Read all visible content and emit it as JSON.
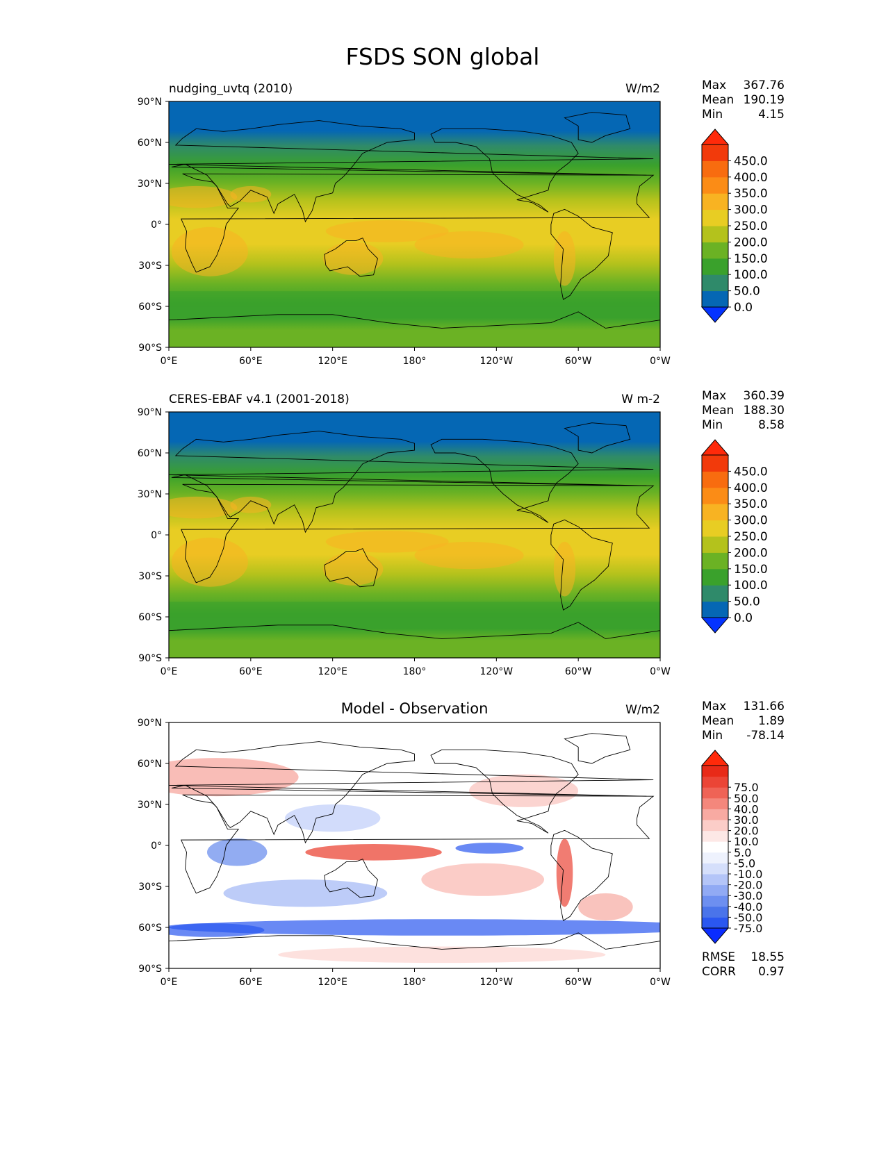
{
  "figure_title": "FSDS SON global",
  "axes": {
    "lat_labels": [
      "90°N",
      "60°N",
      "30°N",
      "0°",
      "30°S",
      "60°S",
      "90°S"
    ],
    "lon_labels": [
      "0°E",
      "60°E",
      "120°E",
      "180°",
      "120°W",
      "60°W",
      "0°W"
    ]
  },
  "panels": [
    {
      "left_title": "nudging_uvtq (2010)",
      "center_title": "",
      "units": "W/m2",
      "stats": {
        "max_label": "Max",
        "max": "367.76",
        "mean_label": "Mean",
        "mean": "190.19",
        "min_label": "Min",
        "min": "4.15"
      },
      "colorbar": {
        "labels": [
          "450.0",
          "400.0",
          "350.0",
          "300.0",
          "250.0",
          "200.0",
          "150.0",
          "100.0",
          "50.0",
          "0.0"
        ],
        "colors": [
          "#0433ff",
          "#0567b4",
          "#2f8a6a",
          "#3aa12c",
          "#6bb224",
          "#b4c21c",
          "#e8cd23",
          "#f8b322",
          "#fb8c16",
          "#f86c0f",
          "#f23a0b",
          "#ff2a0a"
        ]
      }
    },
    {
      "left_title": "CERES-EBAF v4.1 (2001-2018)",
      "center_title": "",
      "units": "W m-2",
      "stats": {
        "max_label": "Max",
        "max": "360.39",
        "mean_label": "Mean",
        "mean": "188.30",
        "min_label": "Min",
        "min": "8.58"
      },
      "colorbar": {
        "labels": [
          "450.0",
          "400.0",
          "350.0",
          "300.0",
          "250.0",
          "200.0",
          "150.0",
          "100.0",
          "50.0",
          "0.0"
        ],
        "colors": [
          "#0433ff",
          "#0567b4",
          "#2f8a6a",
          "#3aa12c",
          "#6bb224",
          "#b4c21c",
          "#e8cd23",
          "#f8b322",
          "#fb8c16",
          "#f86c0f",
          "#f23a0b",
          "#ff2a0a"
        ]
      }
    },
    {
      "left_title": "",
      "center_title": "Model - Observation",
      "units": "W/m2",
      "stats": {
        "max_label": "Max",
        "max": "131.66",
        "mean_label": "Mean",
        "mean": "1.89",
        "min_label": "Min",
        "min": "-78.14"
      },
      "extra_stats": {
        "rmse_label": "RMSE",
        "rmse": "18.55",
        "corr_label": "CORR",
        "corr": "0.97"
      },
      "colorbar": {
        "labels": [
          "75.0",
          "50.0",
          "40.0",
          "30.0",
          "20.0",
          "10.0",
          "5.0",
          "-5.0",
          "-10.0",
          "-20.0",
          "-30.0",
          "-40.0",
          "-50.0",
          "-75.0"
        ],
        "colors": [
          "#0a2cff",
          "#2a57f0",
          "#4a74ea",
          "#6d8ff0",
          "#91aaf4",
          "#b4c5f8",
          "#d5dffb",
          "#eef2fd",
          "#ffffff",
          "#fde8e6",
          "#fbcdc8",
          "#f8aaa2",
          "#f4877c",
          "#ef6356",
          "#eb4536",
          "#e82a18",
          "#ff2a0a"
        ]
      }
    }
  ]
}
